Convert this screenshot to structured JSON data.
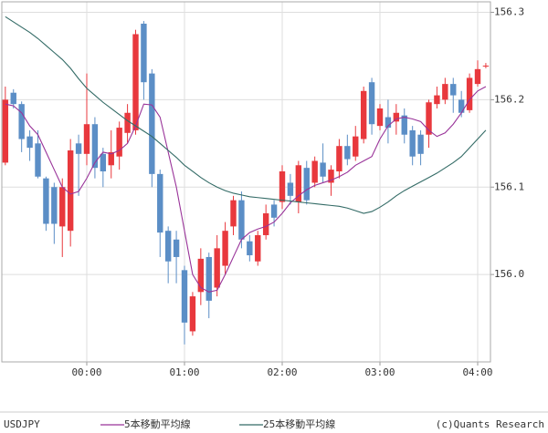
{
  "chart_data": {
    "type": "candlestick",
    "symbol": "USDJPY",
    "credit": "(c)Quants Research",
    "up_color": "#e8383d",
    "down_color": "#5b8ec6",
    "open": [
      156.128,
      156.208,
      156.195,
      156.158,
      156.15,
      156.11,
      156.1,
      156.055,
      156.05,
      156.15,
      156.138,
      156.172,
      156.138,
      156.125,
      156.135,
      156.162,
      156.165,
      156.287,
      156.23,
      156.115,
      156.05,
      156.04,
      156.005,
      155.935,
      155.98,
      156.02,
      155.985,
      156.01,
      156.055,
      156.085,
      156.038,
      156.015,
      156.045,
      156.08,
      156.083,
      156.105,
      156.083,
      156.122,
      156.105,
      156.128,
      156.105,
      156.118,
      156.147,
      156.135,
      156.155,
      156.22,
      156.17,
      156.18,
      156.175,
      156.182,
      156.165,
      156.16,
      156.16,
      156.195,
      156.2,
      156.218,
      156.2,
      156.188,
      156.218,
      156.238
    ],
    "high": [
      156.215,
      156.212,
      156.198,
      156.165,
      156.165,
      156.112,
      156.105,
      156.11,
      156.155,
      156.16,
      156.23,
      156.18,
      156.145,
      156.165,
      156.175,
      156.195,
      156.28,
      156.29,
      156.235,
      156.12,
      156.055,
      156.05,
      156.01,
      155.98,
      156.03,
      156.025,
      156.045,
      156.06,
      156.09,
      156.095,
      156.045,
      156.05,
      156.08,
      156.085,
      156.125,
      156.115,
      156.13,
      156.13,
      156.135,
      156.15,
      156.125,
      156.155,
      156.16,
      156.17,
      156.215,
      156.225,
      156.195,
      156.2,
      156.195,
      156.19,
      156.17,
      156.165,
      156.2,
      156.215,
      156.225,
      156.225,
      156.21,
      156.23,
      156.245,
      156.242
    ],
    "low": [
      156.125,
      156.19,
      156.14,
      156.13,
      156.11,
      156.05,
      156.035,
      156.02,
      156.032,
      156.09,
      156.125,
      156.11,
      156.1,
      156.11,
      156.12,
      156.15,
      156.16,
      156.2,
      156.1,
      156.02,
      155.99,
      155.99,
      155.92,
      155.93,
      155.965,
      155.95,
      155.975,
      156.0,
      156.045,
      156.03,
      156.015,
      156.01,
      156.04,
      156.055,
      156.075,
      156.08,
      156.07,
      156.08,
      156.1,
      156.105,
      156.09,
      156.11,
      156.125,
      156.13,
      156.15,
      156.16,
      156.165,
      156.15,
      156.16,
      156.15,
      156.125,
      156.125,
      156.145,
      156.19,
      156.195,
      156.185,
      156.18,
      156.185,
      156.215,
      156.236
    ],
    "close": [
      156.2,
      156.195,
      156.155,
      156.145,
      156.112,
      156.058,
      156.058,
      156.1,
      156.142,
      156.138,
      156.172,
      156.122,
      156.118,
      156.14,
      156.168,
      156.185,
      156.275,
      156.22,
      156.115,
      156.048,
      156.015,
      156.02,
      155.945,
      155.975,
      156.018,
      155.97,
      156.03,
      156.05,
      156.085,
      156.04,
      156.022,
      156.045,
      156.07,
      156.065,
      156.118,
      156.09,
      156.125,
      156.085,
      156.13,
      156.112,
      156.12,
      156.147,
      156.132,
      156.158,
      156.21,
      156.172,
      156.19,
      156.168,
      156.185,
      156.16,
      156.135,
      156.138,
      156.197,
      156.205,
      156.218,
      156.205,
      156.185,
      156.225,
      156.235,
      156.239
    ],
    "series": [
      {
        "name": "5本移動平均線",
        "color": "#993399",
        "values": [
          156.195,
          156.193,
          156.185,
          156.17,
          156.16,
          156.14,
          156.12,
          156.1,
          156.092,
          156.095,
          156.11,
          156.128,
          156.14,
          156.138,
          156.142,
          156.15,
          156.17,
          156.195,
          156.194,
          156.18,
          156.14,
          156.1,
          156.05,
          156.0,
          155.985,
          155.98,
          155.982,
          156.0,
          156.02,
          156.04,
          156.048,
          156.052,
          156.055,
          156.06,
          156.07,
          156.082,
          156.09,
          156.097,
          156.102,
          156.105,
          156.108,
          156.112,
          156.117,
          156.125,
          156.13,
          156.135,
          156.155,
          156.17,
          156.178,
          156.18,
          156.178,
          156.175,
          156.165,
          156.158,
          156.162,
          156.172,
          156.185,
          156.2,
          156.21,
          156.215
        ]
      },
      {
        "name": "25本移動平均線",
        "color": "#336b66",
        "values": [
          156.295,
          156.289,
          156.283,
          156.277,
          156.27,
          156.262,
          156.254,
          156.246,
          156.236,
          156.224,
          156.213,
          156.205,
          156.197,
          156.19,
          156.183,
          156.176,
          156.17,
          156.164,
          156.158,
          156.15,
          156.142,
          156.134,
          156.125,
          156.118,
          156.111,
          156.105,
          156.1,
          156.096,
          156.093,
          156.091,
          156.089,
          156.088,
          156.087,
          156.086,
          156.085,
          156.084,
          156.083,
          156.082,
          156.081,
          156.08,
          156.079,
          156.078,
          156.076,
          156.073,
          156.07,
          156.072,
          156.077,
          156.083,
          156.09,
          156.096,
          156.101,
          156.106,
          156.111,
          156.116,
          156.122,
          156.128,
          156.135,
          156.145,
          156.155,
          156.165
        ]
      }
    ],
    "xlim": [
      -0.43,
      59.57
    ],
    "xticks": [
      {
        "value": 10,
        "label": "00:00"
      },
      {
        "value": 22,
        "label": "01:00"
      },
      {
        "value": 34,
        "label": "02:00"
      },
      {
        "value": 46,
        "label": "03:00"
      },
      {
        "value": 58,
        "label": "04:00"
      }
    ],
    "ylim": [
      155.9,
      156.312
    ],
    "yticks": [
      {
        "value": 156,
        "label": "156.0"
      },
      156.1,
      156.2,
      156.3
    ],
    "grid": true
  }
}
